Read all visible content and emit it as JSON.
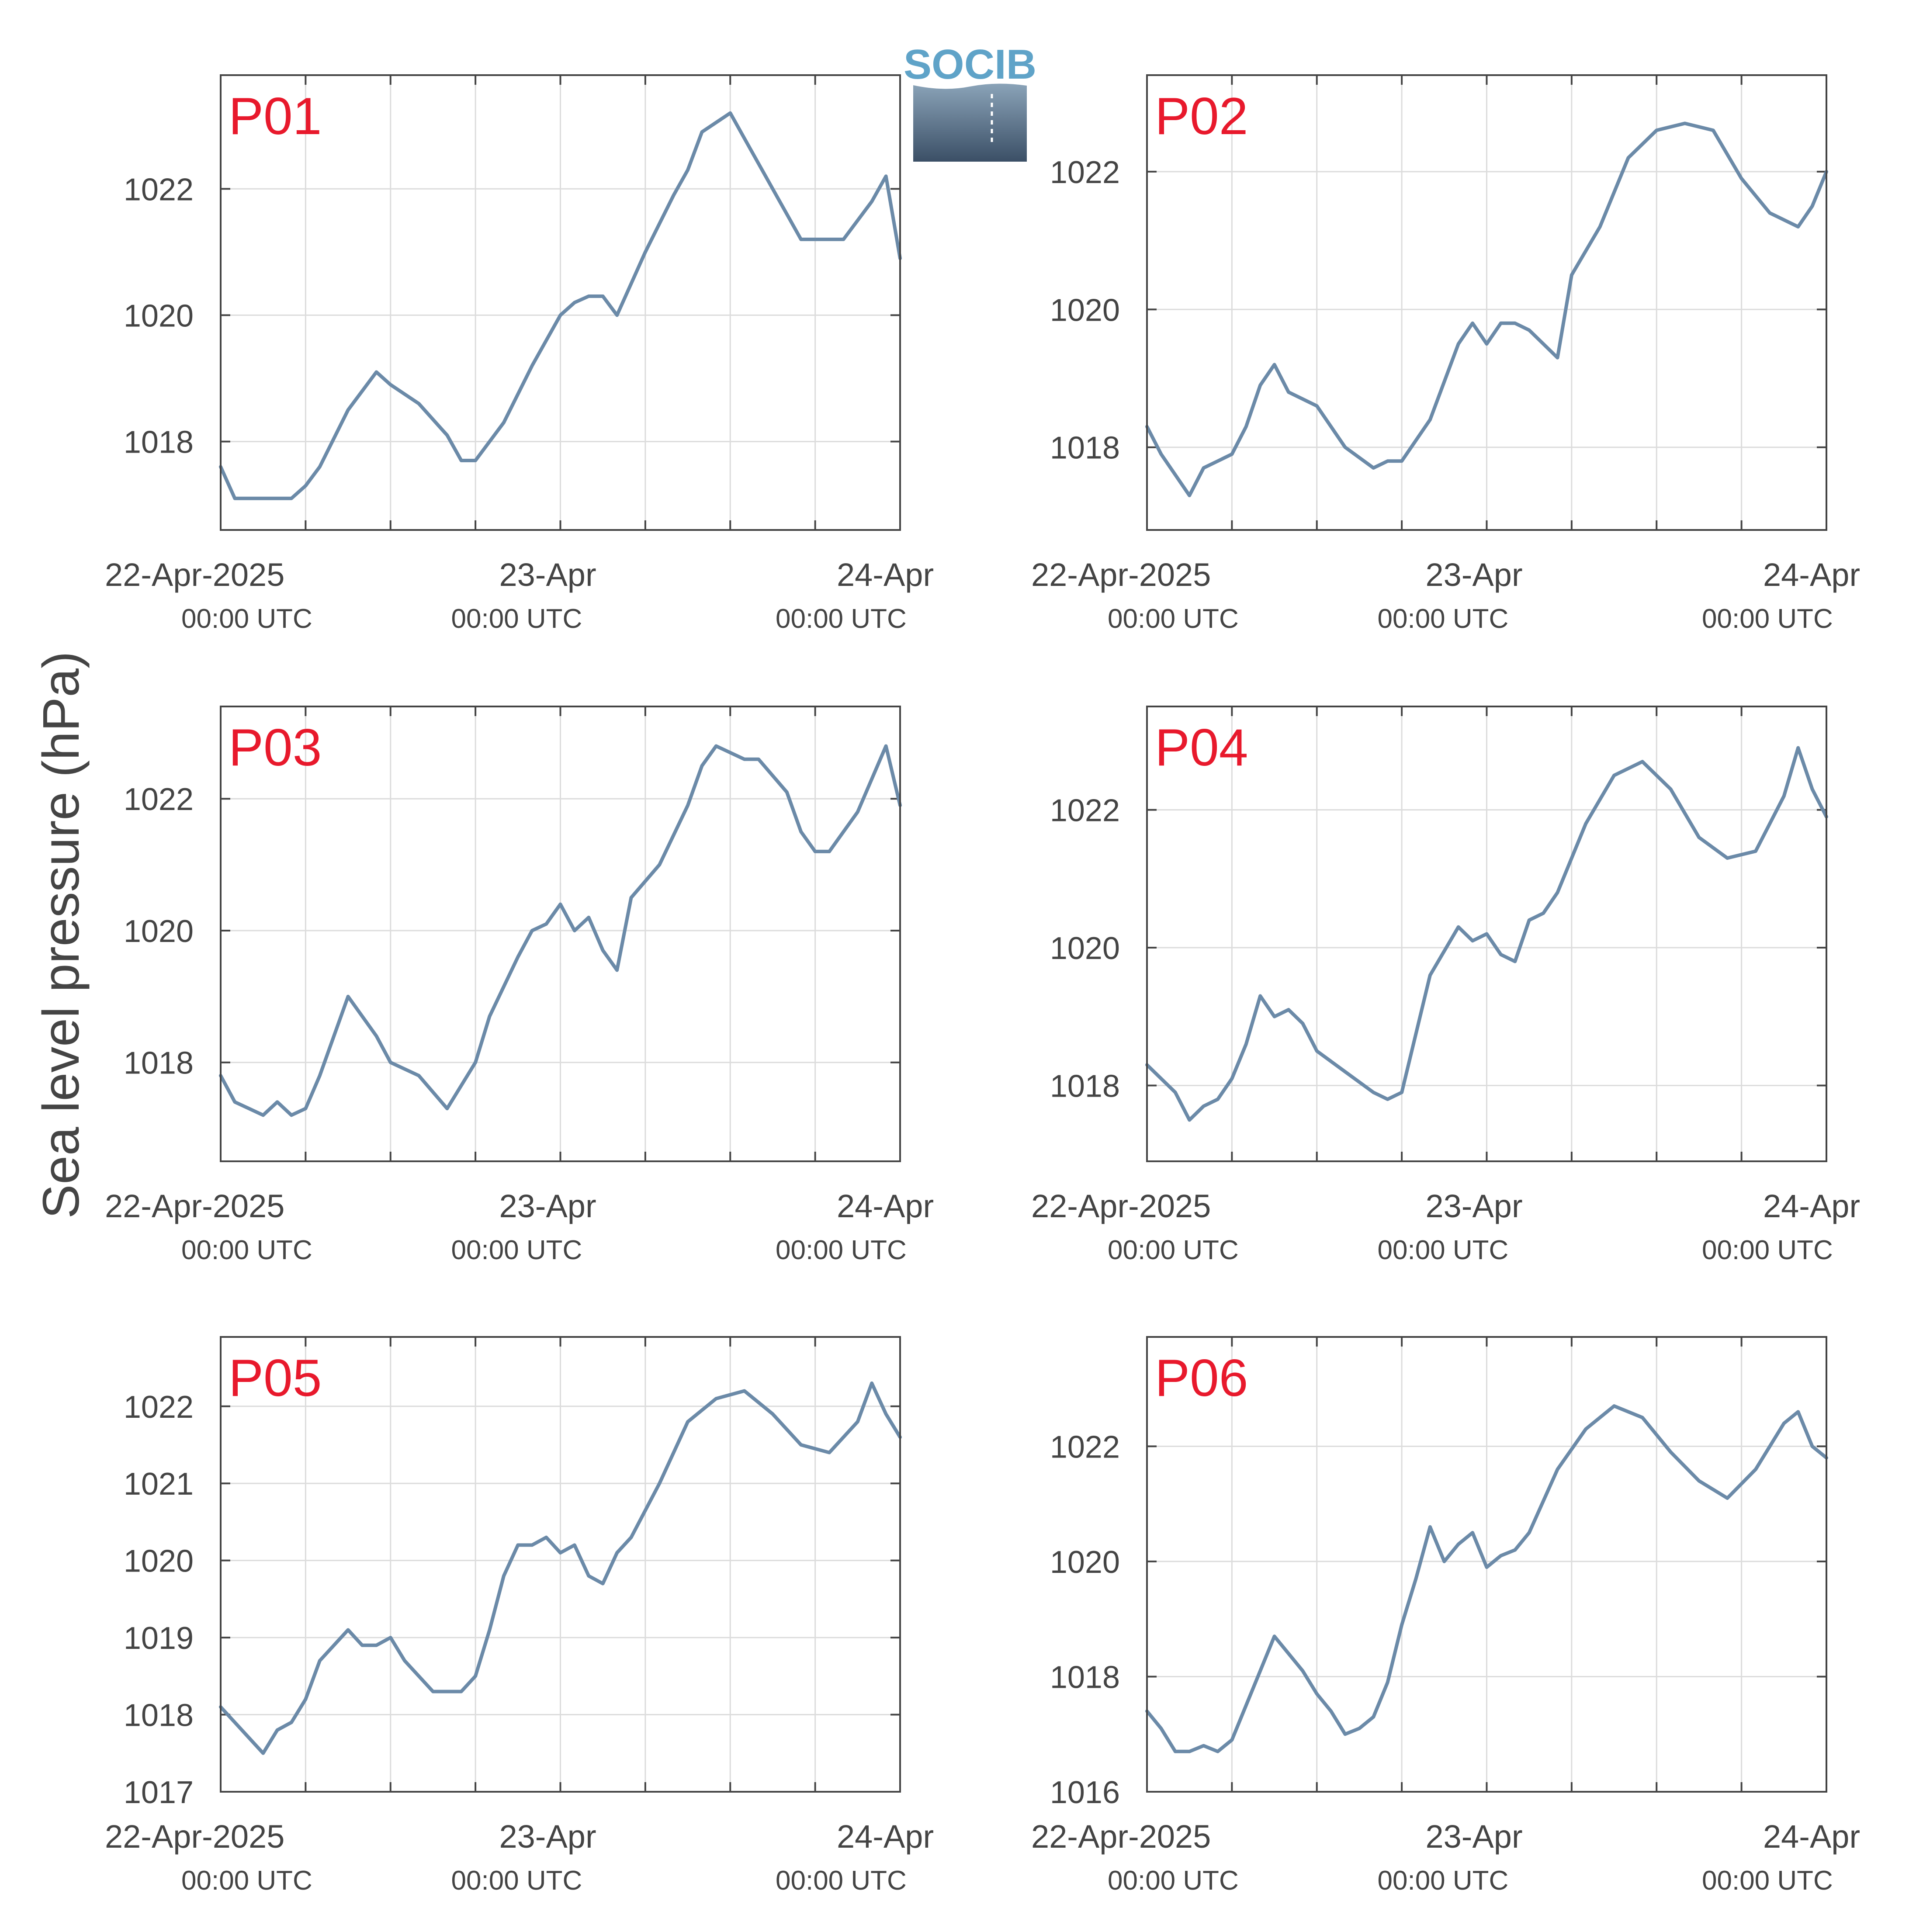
{
  "figure": {
    "ylabel": "Sea level pressure (hPa)",
    "logo_text": "SOCIB"
  },
  "colors": {
    "line": "#6b8aa8",
    "panel_label": "#e8192c",
    "grid": "#dcdcdc",
    "axis": "#444444",
    "logo_text": "#5fa3c8",
    "logo_top": "#8aa3b8",
    "logo_bottom": "#3b4f66"
  },
  "chart_data": [
    {
      "type": "line",
      "label": "P01",
      "grid": true,
      "xlim": [
        "2025-04-22 00:00",
        "2025-04-24 00:00"
      ],
      "ylim": [
        1016.6,
        1023.8
      ],
      "yticks": [
        1018,
        1020,
        1022
      ],
      "xticks": [
        {
          "date": "22-Apr-2025",
          "time": "00:00 UTC"
        },
        {
          "date": "23-Apr",
          "time": "00:00 UTC"
        },
        {
          "date": "24-Apr",
          "time": "00:00 UTC"
        }
      ],
      "series": [
        {
          "x": [
            "2025-04-22 00:00",
            "2025-04-22 01:00",
            "2025-04-22 03:00",
            "2025-04-22 05:00",
            "2025-04-22 06:00",
            "2025-04-22 07:00",
            "2025-04-22 09:00",
            "2025-04-22 11:00",
            "2025-04-22 12:00",
            "2025-04-22 14:00",
            "2025-04-22 16:00",
            "2025-04-22 17:00",
            "2025-04-22 18:00",
            "2025-04-22 20:00",
            "2025-04-22 22:00",
            "2025-04-22 23:00",
            "2025-04-23 00:00",
            "2025-04-23 01:00",
            "2025-04-23 02:00",
            "2025-04-23 03:00",
            "2025-04-23 04:00",
            "2025-04-23 06:00",
            "2025-04-23 08:00",
            "2025-04-23 09:00",
            "2025-04-23 10:00",
            "2025-04-23 12:00",
            "2025-04-23 13:00",
            "2025-04-23 14:00",
            "2025-04-23 16:00",
            "2025-04-23 17:00",
            "2025-04-23 19:00",
            "2025-04-23 20:00",
            "2025-04-23 22:00",
            "2025-04-23 23:00",
            "2025-04-24 00:00"
          ],
          "y": [
            1017.6,
            1017.1,
            1017.1,
            1017.1,
            1017.3,
            1017.6,
            1018.5,
            1019.1,
            1018.9,
            1018.6,
            1018.1,
            1017.7,
            1017.7,
            1018.3,
            1019.2,
            1019.6,
            1020.0,
            1020.2,
            1020.3,
            1020.3,
            1020.0,
            1021.0,
            1021.9,
            1022.3,
            1022.9,
            1023.2,
            1022.8,
            1022.4,
            1021.6,
            1021.2,
            1021.2,
            1021.2,
            1021.8,
            1022.2,
            1020.9
          ]
        }
      ]
    },
    {
      "type": "line",
      "label": "P02",
      "grid": true,
      "xlim": [
        "2025-04-22 00:00",
        "2025-04-24 00:00"
      ],
      "ylim": [
        1016.8,
        1023.4
      ],
      "yticks": [
        1018,
        1020,
        1022
      ],
      "xticks": [
        {
          "date": "22-Apr-2025",
          "time": "00:00 UTC"
        },
        {
          "date": "23-Apr",
          "time": "00:00 UTC"
        },
        {
          "date": "24-Apr",
          "time": "00:00 UTC"
        }
      ],
      "series": [
        {
          "x": [
            "2025-04-22 00:00",
            "2025-04-22 01:00",
            "2025-04-22 02:00",
            "2025-04-22 03:00",
            "2025-04-22 04:00",
            "2025-04-22 05:00",
            "2025-04-22 06:00",
            "2025-04-22 07:00",
            "2025-04-22 08:00",
            "2025-04-22 09:00",
            "2025-04-22 10:00",
            "2025-04-22 12:00",
            "2025-04-22 14:00",
            "2025-04-22 16:00",
            "2025-04-22 17:00",
            "2025-04-22 18:00",
            "2025-04-22 20:00",
            "2025-04-22 22:00",
            "2025-04-22 23:00",
            "2025-04-23 00:00",
            "2025-04-23 01:00",
            "2025-04-23 02:00",
            "2025-04-23 03:00",
            "2025-04-23 04:00",
            "2025-04-23 05:00",
            "2025-04-23 06:00",
            "2025-04-23 08:00",
            "2025-04-23 10:00",
            "2025-04-23 12:00",
            "2025-04-23 14:00",
            "2025-04-23 16:00",
            "2025-04-23 18:00",
            "2025-04-23 20:00",
            "2025-04-23 22:00",
            "2025-04-23 23:00",
            "2025-04-24 00:00"
          ],
          "y": [
            1018.3,
            1017.9,
            1017.6,
            1017.3,
            1017.7,
            1017.8,
            1017.9,
            1018.3,
            1018.9,
            1019.2,
            1018.8,
            1018.6,
            1018.0,
            1017.7,
            1017.8,
            1017.8,
            1018.4,
            1019.5,
            1019.8,
            1019.5,
            1019.8,
            1019.8,
            1019.7,
            1019.5,
            1019.3,
            1020.5,
            1021.2,
            1022.2,
            1022.6,
            1022.7,
            1022.6,
            1021.9,
            1021.4,
            1021.2,
            1021.5,
            1022.0
          ]
        }
      ]
    },
    {
      "type": "line",
      "label": "P03",
      "grid": true,
      "xlim": [
        "2025-04-22 00:00",
        "2025-04-24 00:00"
      ],
      "ylim": [
        1016.5,
        1023.4
      ],
      "yticks": [
        1018,
        1020,
        1022
      ],
      "xticks": [
        {
          "date": "22-Apr-2025",
          "time": "00:00 UTC"
        },
        {
          "date": "23-Apr",
          "time": "00:00 UTC"
        },
        {
          "date": "24-Apr",
          "time": "00:00 UTC"
        }
      ],
      "series": [
        {
          "x": [
            "2025-04-22 00:00",
            "2025-04-22 01:00",
            "2025-04-22 02:00",
            "2025-04-22 03:00",
            "2025-04-22 04:00",
            "2025-04-22 05:00",
            "2025-04-22 06:00",
            "2025-04-22 07:00",
            "2025-04-22 08:00",
            "2025-04-22 09:00",
            "2025-04-22 10:00",
            "2025-04-22 11:00",
            "2025-04-22 12:00",
            "2025-04-22 14:00",
            "2025-04-22 16:00",
            "2025-04-22 18:00",
            "2025-04-22 19:00",
            "2025-04-22 21:00",
            "2025-04-22 22:00",
            "2025-04-22 23:00",
            "2025-04-23 00:00",
            "2025-04-23 01:00",
            "2025-04-23 02:00",
            "2025-04-23 03:00",
            "2025-04-23 04:00",
            "2025-04-23 05:00",
            "2025-04-23 07:00",
            "2025-04-23 09:00",
            "2025-04-23 10:00",
            "2025-04-23 11:00",
            "2025-04-23 13:00",
            "2025-04-23 14:00",
            "2025-04-23 16:00",
            "2025-04-23 17:00",
            "2025-04-23 18:00",
            "2025-04-23 19:00",
            "2025-04-23 21:00",
            "2025-04-23 23:00",
            "2025-04-24 00:00"
          ],
          "y": [
            1017.8,
            1017.4,
            1017.3,
            1017.2,
            1017.4,
            1017.2,
            1017.3,
            1017.8,
            1018.4,
            1019.0,
            1018.7,
            1018.4,
            1018.0,
            1017.8,
            1017.3,
            1018.0,
            1018.7,
            1019.6,
            1020.0,
            1020.1,
            1020.4,
            1020.0,
            1020.2,
            1019.7,
            1019.4,
            1020.5,
            1021.0,
            1021.9,
            1022.5,
            1022.8,
            1022.6,
            1022.6,
            1022.1,
            1021.5,
            1021.2,
            1021.2,
            1021.8,
            1022.8,
            1021.9
          ]
        }
      ]
    },
    {
      "type": "line",
      "label": "P04",
      "grid": true,
      "xlim": [
        "2025-04-22 00:00",
        "2025-04-24 00:00"
      ],
      "ylim": [
        1016.9,
        1023.5
      ],
      "yticks": [
        1018,
        1020,
        1022
      ],
      "xticks": [
        {
          "date": "22-Apr-2025",
          "time": "00:00 UTC"
        },
        {
          "date": "23-Apr",
          "time": "00:00 UTC"
        },
        {
          "date": "24-Apr",
          "time": "00:00 UTC"
        }
      ],
      "series": [
        {
          "x": [
            "2025-04-22 00:00",
            "2025-04-22 01:00",
            "2025-04-22 02:00",
            "2025-04-22 03:00",
            "2025-04-22 04:00",
            "2025-04-22 05:00",
            "2025-04-22 06:00",
            "2025-04-22 07:00",
            "2025-04-22 08:00",
            "2025-04-22 09:00",
            "2025-04-22 10:00",
            "2025-04-22 11:00",
            "2025-04-22 12:00",
            "2025-04-22 14:00",
            "2025-04-22 16:00",
            "2025-04-22 17:00",
            "2025-04-22 18:00",
            "2025-04-22 20:00",
            "2025-04-22 22:00",
            "2025-04-22 23:00",
            "2025-04-23 00:00",
            "2025-04-23 01:00",
            "2025-04-23 02:00",
            "2025-04-23 03:00",
            "2025-04-23 04:00",
            "2025-04-23 05:00",
            "2025-04-23 07:00",
            "2025-04-23 09:00",
            "2025-04-23 11:00",
            "2025-04-23 13:00",
            "2025-04-23 15:00",
            "2025-04-23 17:00",
            "2025-04-23 19:00",
            "2025-04-23 21:00",
            "2025-04-23 22:00",
            "2025-04-23 23:00",
            "2025-04-24 00:00"
          ],
          "y": [
            1018.3,
            1018.1,
            1017.9,
            1017.5,
            1017.7,
            1017.8,
            1018.1,
            1018.6,
            1019.3,
            1019.0,
            1019.1,
            1018.9,
            1018.5,
            1018.2,
            1017.9,
            1017.8,
            1017.9,
            1019.6,
            1020.3,
            1020.1,
            1020.2,
            1019.9,
            1019.8,
            1020.4,
            1020.5,
            1020.8,
            1021.8,
            1022.5,
            1022.7,
            1022.3,
            1021.6,
            1021.3,
            1021.4,
            1022.2,
            1022.9,
            1022.3,
            1021.9
          ]
        }
      ]
    },
    {
      "type": "line",
      "label": "P05",
      "grid": true,
      "xlim": [
        "2025-04-22 00:00",
        "2025-04-24 00:00"
      ],
      "ylim": [
        1017.0,
        1022.9
      ],
      "yticks": [
        1017,
        1018,
        1019,
        1020,
        1021,
        1022
      ],
      "xticks": [
        {
          "date": "22-Apr-2025",
          "time": "00:00 UTC"
        },
        {
          "date": "23-Apr",
          "time": "00:00 UTC"
        },
        {
          "date": "24-Apr",
          "time": "00:00 UTC"
        }
      ],
      "series": [
        {
          "x": [
            "2025-04-22 00:00",
            "2025-04-22 01:00",
            "2025-04-22 02:00",
            "2025-04-22 03:00",
            "2025-04-22 04:00",
            "2025-04-22 05:00",
            "2025-04-22 06:00",
            "2025-04-22 07:00",
            "2025-04-22 08:00",
            "2025-04-22 09:00",
            "2025-04-22 10:00",
            "2025-04-22 11:00",
            "2025-04-22 12:00",
            "2025-04-22 13:00",
            "2025-04-22 14:00",
            "2025-04-22 15:00",
            "2025-04-22 16:00",
            "2025-04-22 17:00",
            "2025-04-22 18:00",
            "2025-04-22 19:00",
            "2025-04-22 20:00",
            "2025-04-22 21:00",
            "2025-04-22 22:00",
            "2025-04-22 23:00",
            "2025-04-23 00:00",
            "2025-04-23 01:00",
            "2025-04-23 02:00",
            "2025-04-23 03:00",
            "2025-04-23 04:00",
            "2025-04-23 05:00",
            "2025-04-23 07:00",
            "2025-04-23 09:00",
            "2025-04-23 11:00",
            "2025-04-23 13:00",
            "2025-04-23 15:00",
            "2025-04-23 17:00",
            "2025-04-23 19:00",
            "2025-04-23 21:00",
            "2025-04-23 22:00",
            "2025-04-23 23:00",
            "2025-04-24 00:00"
          ],
          "y": [
            1018.1,
            1017.9,
            1017.7,
            1017.5,
            1017.8,
            1017.9,
            1018.2,
            1018.7,
            1018.9,
            1019.1,
            1018.9,
            1018.9,
            1019.0,
            1018.7,
            1018.5,
            1018.3,
            1018.3,
            1018.3,
            1018.5,
            1019.1,
            1019.8,
            1020.2,
            1020.2,
            1020.3,
            1020.1,
            1020.2,
            1019.8,
            1019.7,
            1020.1,
            1020.3,
            1021.0,
            1021.8,
            1022.1,
            1022.2,
            1021.9,
            1021.5,
            1021.4,
            1021.8,
            1022.3,
            1021.9,
            1021.6
          ]
        }
      ]
    },
    {
      "type": "line",
      "label": "P06",
      "grid": true,
      "xlim": [
        "2025-04-22 00:00",
        "2025-04-24 00:00"
      ],
      "ylim": [
        1016.0,
        1023.9
      ],
      "yticks": [
        1016,
        1018,
        1020,
        1022
      ],
      "xticks": [
        {
          "date": "22-Apr-2025",
          "time": "00:00 UTC"
        },
        {
          "date": "23-Apr",
          "time": "00:00 UTC"
        },
        {
          "date": "24-Apr",
          "time": "00:00 UTC"
        }
      ],
      "series": [
        {
          "x": [
            "2025-04-22 00:00",
            "2025-04-22 01:00",
            "2025-04-22 02:00",
            "2025-04-22 03:00",
            "2025-04-22 04:00",
            "2025-04-22 05:00",
            "2025-04-22 06:00",
            "2025-04-22 07:00",
            "2025-04-22 08:00",
            "2025-04-22 09:00",
            "2025-04-22 10:00",
            "2025-04-22 11:00",
            "2025-04-22 12:00",
            "2025-04-22 13:00",
            "2025-04-22 14:00",
            "2025-04-22 15:00",
            "2025-04-22 16:00",
            "2025-04-22 17:00",
            "2025-04-22 18:00",
            "2025-04-22 19:00",
            "2025-04-22 20:00",
            "2025-04-22 21:00",
            "2025-04-22 22:00",
            "2025-04-22 23:00",
            "2025-04-23 00:00",
            "2025-04-23 01:00",
            "2025-04-23 02:00",
            "2025-04-23 03:00",
            "2025-04-23 05:00",
            "2025-04-23 07:00",
            "2025-04-23 09:00",
            "2025-04-23 11:00",
            "2025-04-23 13:00",
            "2025-04-23 15:00",
            "2025-04-23 17:00",
            "2025-04-23 19:00",
            "2025-04-23 21:00",
            "2025-04-23 22:00",
            "2025-04-23 23:00",
            "2025-04-24 00:00"
          ],
          "y": [
            1017.4,
            1017.1,
            1016.7,
            1016.7,
            1016.8,
            1016.7,
            1016.9,
            1017.5,
            1018.1,
            1018.7,
            1018.4,
            1018.1,
            1017.7,
            1017.4,
            1017.0,
            1017.1,
            1017.3,
            1017.9,
            1018.9,
            1019.7,
            1020.6,
            1020.0,
            1020.3,
            1020.5,
            1019.9,
            1020.1,
            1020.2,
            1020.5,
            1021.6,
            1022.3,
            1022.7,
            1022.5,
            1021.9,
            1021.4,
            1021.1,
            1021.6,
            1022.4,
            1022.6,
            1022.0,
            1021.8
          ]
        }
      ]
    }
  ]
}
